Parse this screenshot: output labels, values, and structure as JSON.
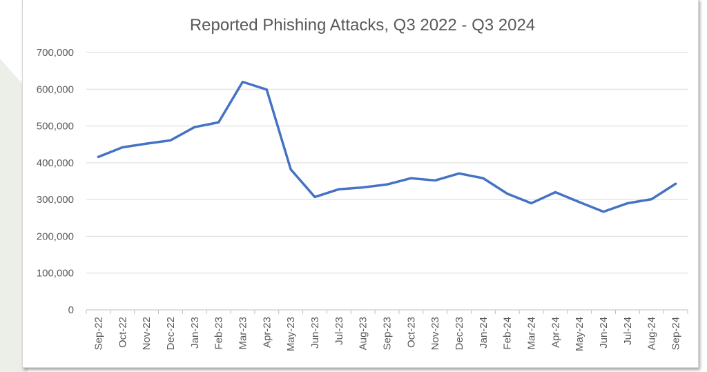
{
  "chart_data": {
    "type": "line",
    "title": "Reported Phishing Attacks, Q3 2022 - Q3 2024",
    "xlabel": "",
    "ylabel": "",
    "ylim": [
      0,
      700000
    ],
    "yticks": [
      0,
      100000,
      200000,
      300000,
      400000,
      500000,
      600000,
      700000
    ],
    "ytick_labels": [
      "0",
      "100,000",
      "200,000",
      "300,000",
      "400,000",
      "500,000",
      "600,000",
      "700,000"
    ],
    "grid": true,
    "legend": "none",
    "categories": [
      "Sep-22",
      "Oct-22",
      "Nov-22",
      "Dec-22",
      "Jan-23",
      "Feb-23",
      "Mar-23",
      "Apr-23",
      "May-23",
      "Jun-23",
      "Jul-23",
      "Aug-23",
      "Sep-23",
      "Oct-23",
      "Nov-23",
      "Dec-23",
      "Jan-24",
      "Feb-24",
      "Mar-24",
      "Apr-24",
      "May-24",
      "Jun-24",
      "Jul-24",
      "Aug-24",
      "Sep-24"
    ],
    "series": [
      {
        "name": "Reported Phishing Attacks",
        "color": "#4472c4",
        "values": [
          416000,
          442000,
          452000,
          461000,
          497000,
          510000,
          620000,
          599000,
          382000,
          307000,
          328000,
          333000,
          341000,
          358000,
          352000,
          371000,
          358000,
          316000,
          290000,
          320000,
          293000,
          267000,
          290000,
          301000,
          343000
        ]
      }
    ]
  }
}
